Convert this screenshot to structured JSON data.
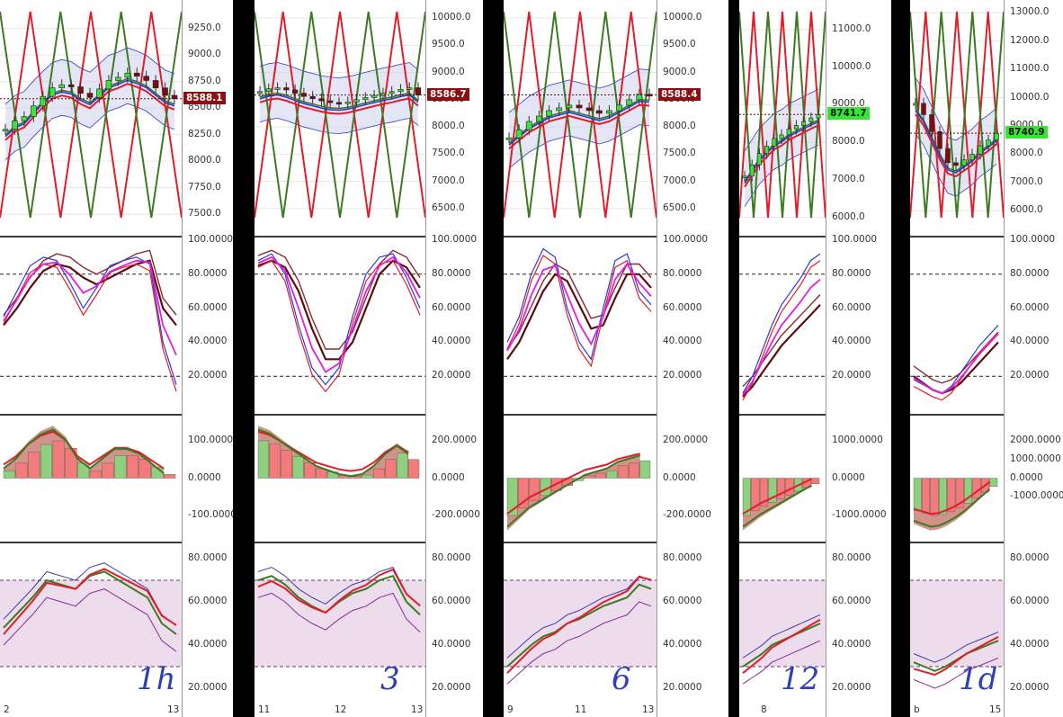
{
  "colors": {
    "red": "#e11d2a",
    "green": "#3d7a22",
    "blue": "#2b3bd6",
    "maroon": "#5a0f0f",
    "band": "#cdd2ee",
    "priceTag": "#8b0f12",
    "priceTagGreen": "#35e635"
  },
  "charts": [
    {
      "id": "1h",
      "handwritten": "1h",
      "price_label": "8588.1",
      "price_ticks": [
        "9250.0",
        "9000.0",
        "8750.0",
        "8500.0",
        "8250.0",
        "8000.0",
        "7750.0",
        "7500.0"
      ],
      "x_labels": [
        "2",
        "13"
      ],
      "stoch_ticks": [
        "100.0000",
        "80.0000",
        "60.0000",
        "40.0000",
        "20.0000"
      ],
      "macd_ticks": [
        "100.0000",
        "0.0000",
        "-100.0000"
      ],
      "rsi_ticks": [
        "80.0000",
        "60.0000",
        "40.0000",
        "20.0000"
      ]
    },
    {
      "id": "3h",
      "handwritten": "3",
      "price_label": "8586.7",
      "price_ticks": [
        "10000.0",
        "9500.0",
        "9000.0",
        "8500.0",
        "8000.0",
        "7500.0",
        "7000.0",
        "6500.0"
      ],
      "x_labels": [
        "11",
        "12",
        "13"
      ],
      "stoch_ticks": [
        "100.0000",
        "80.0000",
        "60.0000",
        "40.0000",
        "20.0000"
      ],
      "macd_ticks": [
        "200.0000",
        "0.0000",
        "-200.0000"
      ],
      "rsi_ticks": [
        "80.0000",
        "60.0000",
        "40.0000",
        "20.0000"
      ]
    },
    {
      "id": "6h",
      "handwritten": "6",
      "price_label": "8588.4",
      "price_ticks": [
        "10000.0",
        "9500.0",
        "9000.0",
        "8500.0",
        "8000.0",
        "7500.0",
        "7000.0",
        "6500.0"
      ],
      "x_labels": [
        "9",
        "11",
        "13"
      ],
      "stoch_ticks": [
        "100.0000",
        "80.0000",
        "60.0000",
        "40.0000",
        "20.0000"
      ],
      "macd_ticks": [
        "200.0000",
        "0.0000",
        "-200.0000"
      ],
      "rsi_ticks": [
        "80.0000",
        "60.0000",
        "40.0000",
        "20.0000"
      ]
    },
    {
      "id": "12h",
      "handwritten": "12",
      "price_label": "8741.7",
      "price_ticks": [
        "11000.0",
        "10000.0",
        "9000.0",
        "8000.0",
        "7000.0",
        "6000.0"
      ],
      "x_labels": [
        "8"
      ],
      "stoch_ticks": [
        "100.0000",
        "80.0000",
        "60.0000",
        "40.0000",
        "20.0000"
      ],
      "macd_ticks": [
        "1000.0000",
        "0.0000",
        "-1000.0000"
      ],
      "rsi_ticks": [
        "80.0000",
        "60.0000",
        "40.0000",
        "20.0000"
      ]
    },
    {
      "id": "1d",
      "handwritten": "1d",
      "price_label": "8740.9",
      "price_ticks": [
        "13000.0",
        "12000.0",
        "11000.0",
        "10000.0",
        "9000.0",
        "8000.0",
        "7000.0",
        "6000.0"
      ],
      "x_labels": [
        "b",
        "15"
      ],
      "stoch_ticks": [
        "100.0000",
        "80.0000",
        "60.0000",
        "40.0000",
        "20.0000"
      ],
      "macd_ticks": [
        "2000.0000",
        "1000.0000",
        "0.0000",
        "-1000.0000"
      ],
      "rsi_ticks": [
        "80.0000",
        "60.0000",
        "40.0000",
        "20.0000"
      ]
    }
  ],
  "chart_data": [
    {
      "type": "line",
      "title": "",
      "candles": [
        8300,
        8380,
        8420,
        8520,
        8610,
        8690,
        8720,
        8700,
        8640,
        8600,
        8680,
        8760,
        8790,
        8830,
        8800,
        8760,
        8690,
        8620,
        8588
      ],
      "ylim": [
        7400,
        9450
      ],
      "stoch_k": [
        55,
        70,
        85,
        90,
        88,
        75,
        60,
        72,
        85,
        88,
        90,
        86,
        40,
        15
      ],
      "stoch_d": [
        50,
        60,
        72,
        82,
        86,
        84,
        78,
        74,
        78,
        82,
        86,
        88,
        60,
        50
      ],
      "macd_hist": [
        10,
        20,
        35,
        45,
        50,
        40,
        20,
        10,
        20,
        30,
        30,
        25,
        15,
        5
      ],
      "rsi": [
        48,
        55,
        62,
        70,
        68,
        66,
        72,
        74,
        70,
        66,
        62,
        50,
        45
      ]
    },
    {
      "type": "line",
      "title": "",
      "candles": [
        8650,
        8700,
        8720,
        8680,
        8620,
        8560,
        8520,
        8480,
        8450,
        8440,
        8460,
        8500,
        8540,
        8580,
        8620,
        8650,
        8690,
        8720,
        8586
      ],
      "ylim": [
        6200,
        10200
      ],
      "stoch_k": [
        88,
        92,
        80,
        50,
        25,
        15,
        25,
        55,
        80,
        90,
        92,
        78,
        60
      ],
      "stoch_d": [
        85,
        88,
        84,
        70,
        48,
        30,
        30,
        40,
        60,
        80,
        88,
        84,
        72
      ],
      "macd_hist": [
        120,
        110,
        90,
        70,
        50,
        30,
        20,
        10,
        5,
        10,
        30,
        60,
        80,
        60
      ],
      "rsi": [
        70,
        72,
        68,
        62,
        58,
        55,
        60,
        64,
        66,
        70,
        72,
        60,
        54
      ]
    },
    {
      "type": "line",
      "title": "",
      "candles": [
        7800,
        7950,
        8100,
        8200,
        8300,
        8350,
        8400,
        8350,
        8300,
        8250,
        8300,
        8400,
        8500,
        8600,
        8588
      ],
      "ylim": [
        6200,
        10200
      ],
      "stoch_k": [
        40,
        55,
        80,
        95,
        90,
        60,
        40,
        30,
        60,
        88,
        92,
        70,
        62
      ],
      "stoch_d": [
        30,
        40,
        55,
        70,
        80,
        76,
        62,
        48,
        50,
        66,
        80,
        80,
        72
      ],
      "macd_hist": [
        -150,
        -120,
        -90,
        -70,
        -50,
        -30,
        -10,
        10,
        20,
        30,
        50,
        60,
        70
      ],
      "rsi": [
        30,
        35,
        40,
        44,
        46,
        50,
        52,
        55,
        58,
        60,
        62,
        68,
        66
      ]
    },
    {
      "type": "line",
      "title": "",
      "candles": [
        7100,
        7400,
        7700,
        7900,
        8100,
        8200,
        8350,
        8450,
        8550,
        8650,
        8741
      ],
      "ylim": [
        5800,
        11600
      ],
      "stoch_k": [
        10,
        20,
        35,
        50,
        62,
        70,
        78,
        88,
        92
      ],
      "stoch_d": [
        8,
        14,
        22,
        30,
        38,
        44,
        50,
        56,
        62
      ],
      "macd_hist": [
        -400,
        -350,
        -300,
        -260,
        -220,
        -180,
        -140,
        -100,
        -60
      ],
      "rsi": [
        30,
        33,
        36,
        40,
        42,
        44,
        46,
        48,
        50
      ]
    },
    {
      "type": "line",
      "title": "",
      "candles": [
        9800,
        9400,
        8800,
        8200,
        7700,
        7600,
        7800,
        8000,
        8300,
        8500,
        8740
      ],
      "ylim": [
        5500,
        13200
      ],
      "stoch_k": [
        18,
        15,
        12,
        10,
        14,
        22,
        30,
        38,
        44,
        50
      ],
      "stoch_d": [
        20,
        16,
        12,
        10,
        12,
        16,
        22,
        28,
        34,
        40
      ],
      "macd_hist": [
        -700,
        -750,
        -800,
        -780,
        -720,
        -640,
        -540,
        -420,
        -300,
        -180
      ],
      "rsi": [
        32,
        30,
        28,
        30,
        33,
        36,
        38,
        40,
        42
      ]
    }
  ]
}
